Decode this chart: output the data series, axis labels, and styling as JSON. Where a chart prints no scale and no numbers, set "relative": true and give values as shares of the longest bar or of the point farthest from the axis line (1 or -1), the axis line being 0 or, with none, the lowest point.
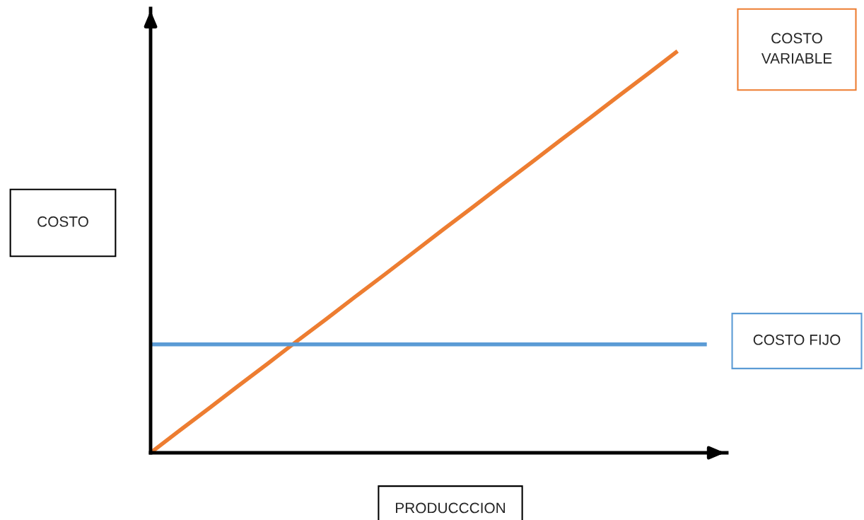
{
  "chart_data": {
    "type": "line",
    "relative": true,
    "xlabel": "PRODUCCCION",
    "ylabel": "COSTO",
    "categories": [
      null,
      null,
      null,
      null,
      null,
      null,
      null,
      null,
      null,
      null,
      null,
      null,
      null,
      null,
      null,
      null,
      null,
      null,
      null,
      null
    ],
    "series": [
      {
        "name": "COSTO VARIABLE",
        "color": "#ed7d31",
        "values": [
          0,
          0.056,
          0.111,
          0.167,
          0.222,
          0.278,
          0.333,
          0.389,
          0.444,
          0.5,
          0.556,
          0.611,
          0.667,
          0.722,
          0.778,
          0.833,
          0.889,
          0.944,
          1,
          null
        ]
      },
      {
        "name": "COSTO FIJO",
        "color": "#5b9bd5",
        "values": [
          0.27,
          0.27,
          0.27,
          0.27,
          0.27,
          0.27,
          0.27,
          0.27,
          0.27,
          0.27,
          0.27,
          0.27,
          0.27,
          0.27,
          0.27,
          0.27,
          0.27,
          0.27,
          0.27,
          0.27
        ]
      }
    ],
    "line_style": "solid",
    "marker": "none",
    "legend": false
  }
}
